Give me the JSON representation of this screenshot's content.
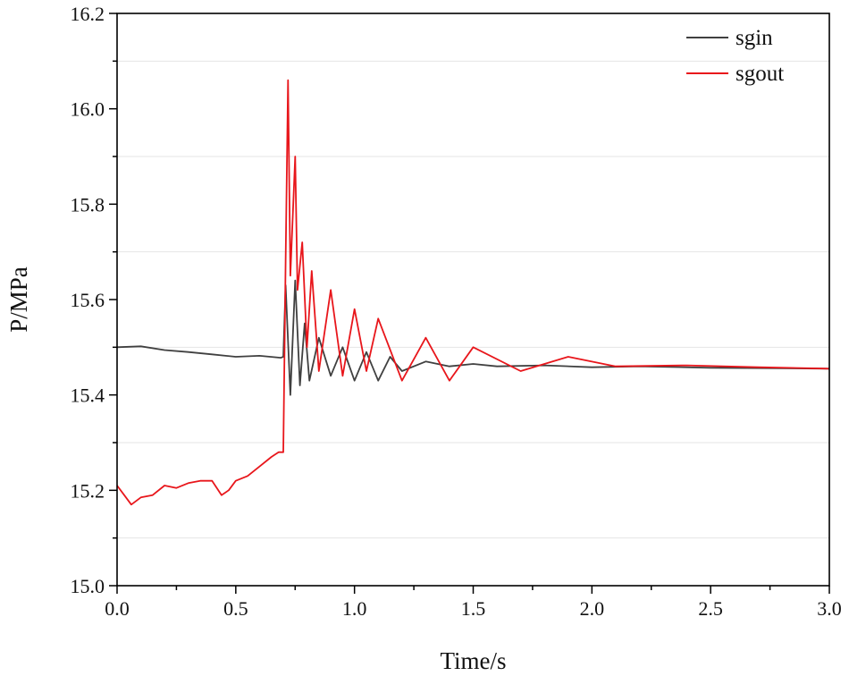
{
  "chart_data": {
    "type": "line",
    "title": "",
    "xlabel": "Time/s",
    "ylabel": "P/MPa",
    "xlim": [
      0.0,
      3.0
    ],
    "ylim": [
      15.0,
      16.2
    ],
    "x_ticks": [
      0.0,
      0.5,
      1.0,
      1.5,
      2.0,
      2.5,
      3.0
    ],
    "x_tick_labels": [
      "0.0",
      "0.5",
      "1.0",
      "1.5",
      "2.0",
      "2.5",
      "3.0"
    ],
    "y_ticks": [
      15.0,
      15.2,
      15.4,
      15.6,
      15.8,
      16.0,
      16.2
    ],
    "y_tick_labels": [
      "15.0",
      "15.2",
      "15.4",
      "15.6",
      "15.8",
      "16.0",
      "16.2"
    ],
    "grid": true,
    "legend_position": "top-right",
    "series": [
      {
        "name": "sgin",
        "color": "#404040",
        "x": [
          0.0,
          0.1,
          0.2,
          0.3,
          0.4,
          0.5,
          0.6,
          0.69,
          0.7,
          0.71,
          0.73,
          0.75,
          0.77,
          0.79,
          0.81,
          0.85,
          0.9,
          0.95,
          1.0,
          1.05,
          1.1,
          1.15,
          1.2,
          1.3,
          1.4,
          1.5,
          1.6,
          1.8,
          2.0,
          2.2,
          2.5,
          2.8,
          3.0
        ],
        "y": [
          15.5,
          15.502,
          15.494,
          15.49,
          15.485,
          15.48,
          15.482,
          15.478,
          15.48,
          15.63,
          15.4,
          15.64,
          15.42,
          15.55,
          15.43,
          15.52,
          15.44,
          15.5,
          15.43,
          15.49,
          15.43,
          15.48,
          15.45,
          15.47,
          15.46,
          15.465,
          15.46,
          15.462,
          15.458,
          15.46,
          15.457,
          15.456,
          15.455
        ]
      },
      {
        "name": "sgout",
        "color": "#e8161b",
        "x": [
          0.0,
          0.03,
          0.06,
          0.1,
          0.15,
          0.2,
          0.25,
          0.3,
          0.35,
          0.4,
          0.44,
          0.47,
          0.5,
          0.55,
          0.6,
          0.65,
          0.68,
          0.7,
          0.71,
          0.72,
          0.73,
          0.75,
          0.76,
          0.78,
          0.8,
          0.82,
          0.85,
          0.9,
          0.95,
          1.0,
          1.05,
          1.1,
          1.2,
          1.3,
          1.4,
          1.5,
          1.7,
          1.9,
          2.1,
          2.4,
          2.7,
          3.0
        ],
        "y": [
          15.21,
          15.19,
          15.17,
          15.185,
          15.19,
          15.21,
          15.205,
          15.215,
          15.22,
          15.22,
          15.19,
          15.2,
          15.22,
          15.23,
          15.25,
          15.27,
          15.28,
          15.28,
          15.68,
          16.06,
          15.65,
          15.9,
          15.62,
          15.72,
          15.5,
          15.66,
          15.45,
          15.62,
          15.44,
          15.58,
          15.45,
          15.56,
          15.43,
          15.52,
          15.43,
          15.5,
          15.45,
          15.48,
          15.46,
          15.462,
          15.458,
          15.455
        ]
      }
    ]
  }
}
